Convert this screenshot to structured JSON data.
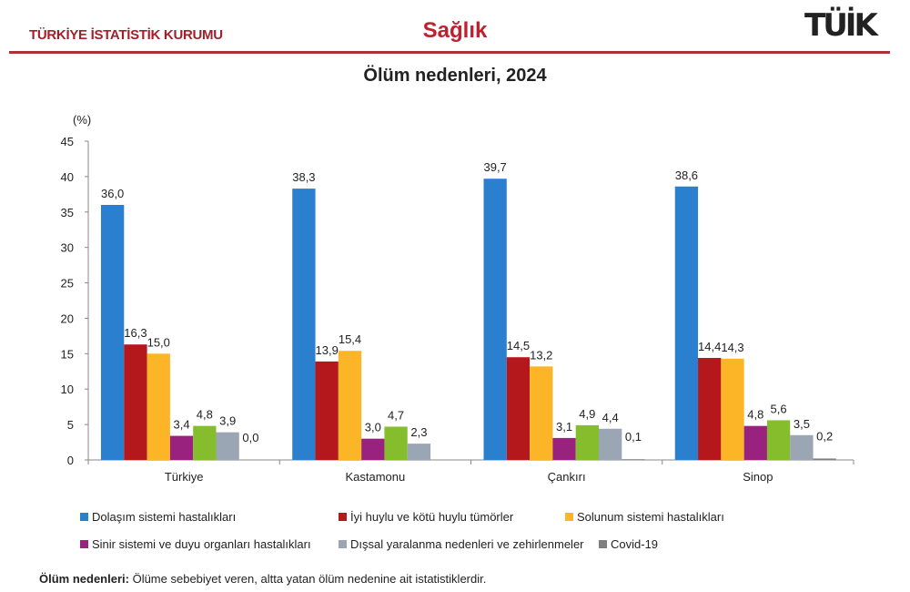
{
  "header": {
    "org": "TÜRKİYE İSTATİSTİK KURUMU",
    "section": "Sağlık",
    "logo": "TÜİK"
  },
  "chart_data": {
    "type": "bar",
    "title": "Ölüm nedenleri, 2024",
    "ylabel": "(%)",
    "ylim": [
      0,
      45
    ],
    "yticks": [
      0,
      5,
      10,
      15,
      20,
      25,
      30,
      35,
      40,
      45
    ],
    "categories": [
      "Türkiye",
      "Kastamonu",
      "Çankırı",
      "Sinop"
    ],
    "series": [
      {
        "name": "Dolaşım sistemi hastalıkları",
        "color": "#2a7fcf",
        "values": [
          36.0,
          38.3,
          39.7,
          38.6
        ],
        "labels": [
          "36,0",
          "38,3",
          "39,7",
          "38,6"
        ]
      },
      {
        "name": "İyi huylu ve kötü huylu tümörler",
        "color": "#b4171c",
        "values": [
          16.3,
          13.9,
          14.5,
          14.4
        ],
        "labels": [
          "16,3",
          "13,9",
          "14,5",
          "14,4"
        ]
      },
      {
        "name": "Solunum sistemi hastalıkları",
        "color": "#fbb526",
        "values": [
          15.0,
          15.4,
          13.2,
          14.3
        ],
        "labels": [
          "15,0",
          "15,4",
          "13,2",
          "14,3"
        ]
      },
      {
        "name": "Sinir sistemi ve duyu organları hastalıkları",
        "color": "#99227f",
        "values": [
          3.4,
          3.0,
          3.1,
          4.8
        ],
        "labels": [
          "3,4",
          "3,0",
          "3,1",
          "4,8"
        ]
      },
      {
        "name": "",
        "color": "#86bd2c",
        "values": [
          4.8,
          4.7,
          4.9,
          5.6
        ],
        "labels": [
          "4,8",
          "4,7",
          "4,9",
          "5,6"
        ]
      },
      {
        "name": "Dışsal yaralanma nedenleri ve zehirlenmeler",
        "color": "#9aa6b4",
        "values": [
          3.9,
          2.3,
          4.4,
          3.5
        ],
        "labels": [
          "3,9",
          "2,3",
          "4,4",
          "3,5"
        ]
      },
      {
        "name": "Covid-19",
        "color": "#7d7f82",
        "values": [
          0.0,
          0.0,
          0.1,
          0.2
        ],
        "labels": [
          "0,0",
          "",
          "0,1",
          "0,2"
        ]
      }
    ],
    "legend_placement": "bottom",
    "grid": false
  },
  "legend_order": [
    0,
    1,
    2,
    3,
    5,
    6
  ],
  "note": {
    "label": "Ölüm nedenleri:",
    "text": " Ölüme sebebiyet veren, altta yatan ölüm nedenine ait istatistiklerdir."
  }
}
